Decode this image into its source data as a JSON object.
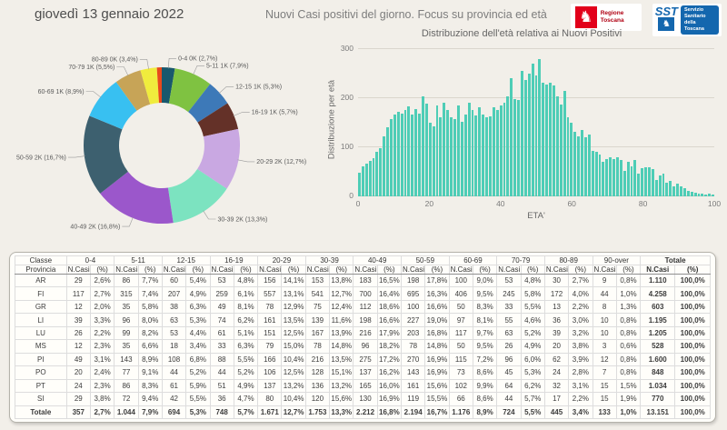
{
  "header": {
    "date": "giovedì 13 gennaio 2022",
    "title": "Nuovi Casi positivi del giorno. Focus su provincia ed età",
    "logos": {
      "region_name": "Regione Toscana",
      "sst_abbr": "SST",
      "sst_lines": [
        "Servizio",
        "Sanitario",
        "della",
        "Toscana"
      ]
    }
  },
  "colors": {
    "page_bg": "#f2efe9",
    "bar": "#4ecdb6",
    "region_red": "#e2001a",
    "sst_blue": "#1467ae"
  },
  "chart_data": [
    {
      "type": "pie",
      "subtype": "donut",
      "legend_position": "callout-labels",
      "slices": [
        {
          "label": "0-4",
          "pct": 2.7,
          "display": "0-4 0K (2,7%)",
          "color": "#19586d"
        },
        {
          "label": "5-11",
          "pct": 7.9,
          "display": "5-11 1K (7,9%)",
          "color": "#7fc241"
        },
        {
          "label": "12-15",
          "pct": 5.3,
          "display": "12-15 1K (5,3%)",
          "color": "#3d79b8"
        },
        {
          "label": "16-19",
          "pct": 5.7,
          "display": "16-19 1K (5,7%)",
          "color": "#643128"
        },
        {
          "label": "20-29",
          "pct": 12.7,
          "display": "20-29 2K (12,7%)",
          "color": "#c9a8e2"
        },
        {
          "label": "30-39",
          "pct": 13.3,
          "display": "30-39 2K (13,3%)",
          "color": "#7ce3c0"
        },
        {
          "label": "40-49",
          "pct": 16.8,
          "display": "40-49 2K (16,8%)",
          "color": "#9b57cb"
        },
        {
          "label": "50-59",
          "pct": 16.7,
          "display": "50-59 2K (16,7%)",
          "color": "#3d606f"
        },
        {
          "label": "60-69",
          "pct": 8.9,
          "display": "60-69 1K (8,9%)",
          "color": "#38c0f1"
        },
        {
          "label": "70-79",
          "pct": 5.5,
          "display": "70-79 1K (5,5%)",
          "color": "#c7a457"
        },
        {
          "label": "80-89",
          "pct": 3.4,
          "display": "80-89 0K (3,4%)",
          "color": "#f0ec3d"
        },
        {
          "label": "90-over",
          "pct": 1.0,
          "display": "",
          "color": "#e8491c"
        }
      ]
    },
    {
      "type": "bar",
      "title": "Distribuzione dell'età relativa ai Nuovi Positivi",
      "xlabel": "ETA'",
      "ylabel": "Distribuzione per età",
      "ylim": [
        0,
        300
      ],
      "yticks": [
        "0",
        "100",
        "200",
        "300"
      ],
      "xticks": [
        "0",
        "20",
        "40",
        "60",
        "80",
        "100"
      ],
      "x_range": [
        0,
        100
      ],
      "grid": true,
      "values": [
        48,
        62,
        66,
        72,
        78,
        90,
        98,
        122,
        141,
        158,
        166,
        172,
        168,
        176,
        184,
        166,
        178,
        168,
        204,
        188,
        150,
        142,
        186,
        162,
        190,
        176,
        162,
        158,
        186,
        152,
        166,
        190,
        176,
        164,
        182,
        166,
        161,
        163,
        181,
        176,
        186,
        190,
        204,
        240,
        198,
        196,
        256,
        238,
        250,
        270,
        246,
        279,
        232,
        228,
        232,
        226,
        204,
        187,
        214,
        162,
        150,
        132,
        122,
        136,
        120,
        126,
        92,
        90,
        86,
        71,
        76,
        80,
        76,
        80,
        75,
        52,
        70,
        62,
        74,
        46,
        57,
        60,
        60,
        55,
        33,
        42,
        46,
        27,
        31,
        21,
        26,
        21,
        16,
        11,
        10,
        8,
        6,
        5,
        3,
        5,
        4
      ]
    }
  ],
  "table": {
    "corner_top": "Classe",
    "corner_bottom": "Provincia",
    "class_headers": [
      "0-4",
      "5-11",
      "12-15",
      "16-19",
      "20-29",
      "30-39",
      "40-49",
      "50-59",
      "60-69",
      "70-79",
      "80-89",
      "90-over",
      "Totale"
    ],
    "subheaders": [
      "N.Casi",
      "(%)"
    ],
    "rows": [
      {
        "provincia": "AR",
        "total": false,
        "cells": [
          "29",
          "2,6%",
          "86",
          "7,7%",
          "60",
          "5,4%",
          "53",
          "4,8%",
          "156",
          "14,1%",
          "153",
          "13,8%",
          "183",
          "16,5%",
          "198",
          "17,8%",
          "100",
          "9,0%",
          "53",
          "4,8%",
          "30",
          "2,7%",
          "9",
          "0,8%",
          "1.110",
          "100,0%"
        ]
      },
      {
        "provincia": "FI",
        "total": false,
        "cells": [
          "117",
          "2,7%",
          "315",
          "7,4%",
          "207",
          "4,9%",
          "259",
          "6,1%",
          "557",
          "13,1%",
          "541",
          "12,7%",
          "700",
          "16,4%",
          "695",
          "16,3%",
          "406",
          "9,5%",
          "245",
          "5,8%",
          "172",
          "4,0%",
          "44",
          "1,0%",
          "4.258",
          "100,0%"
        ]
      },
      {
        "provincia": "GR",
        "total": false,
        "cells": [
          "12",
          "2,0%",
          "35",
          "5,8%",
          "38",
          "6,3%",
          "49",
          "8,1%",
          "78",
          "12,9%",
          "75",
          "12,4%",
          "112",
          "18,6%",
          "100",
          "16,6%",
          "50",
          "8,3%",
          "33",
          "5,5%",
          "13",
          "2,2%",
          "8",
          "1,3%",
          "603",
          "100,0%"
        ]
      },
      {
        "provincia": "LI",
        "total": false,
        "cells": [
          "39",
          "3,3%",
          "96",
          "8,0%",
          "63",
          "5,3%",
          "74",
          "6,2%",
          "161",
          "13,5%",
          "139",
          "11,6%",
          "198",
          "16,6%",
          "227",
          "19,0%",
          "97",
          "8,1%",
          "55",
          "4,6%",
          "36",
          "3,0%",
          "10",
          "0,8%",
          "1.195",
          "100,0%"
        ]
      },
      {
        "provincia": "LU",
        "total": false,
        "cells": [
          "26",
          "2,2%",
          "99",
          "8,2%",
          "53",
          "4,4%",
          "61",
          "5,1%",
          "151",
          "12,5%",
          "167",
          "13,9%",
          "216",
          "17,9%",
          "203",
          "16,8%",
          "117",
          "9,7%",
          "63",
          "5,2%",
          "39",
          "3,2%",
          "10",
          "0,8%",
          "1.205",
          "100,0%"
        ]
      },
      {
        "provincia": "MS",
        "total": false,
        "cells": [
          "12",
          "2,3%",
          "35",
          "6,6%",
          "18",
          "3,4%",
          "33",
          "6,3%",
          "79",
          "15,0%",
          "78",
          "14,8%",
          "96",
          "18,2%",
          "78",
          "14,8%",
          "50",
          "9,5%",
          "26",
          "4,9%",
          "20",
          "3,8%",
          "3",
          "0,6%",
          "528",
          "100,0%"
        ]
      },
      {
        "provincia": "PI",
        "total": false,
        "cells": [
          "49",
          "3,1%",
          "143",
          "8,9%",
          "108",
          "6,8%",
          "88",
          "5,5%",
          "166",
          "10,4%",
          "216",
          "13,5%",
          "275",
          "17,2%",
          "270",
          "16,9%",
          "115",
          "7,2%",
          "96",
          "6,0%",
          "62",
          "3,9%",
          "12",
          "0,8%",
          "1.600",
          "100,0%"
        ]
      },
      {
        "provincia": "PO",
        "total": false,
        "cells": [
          "20",
          "2,4%",
          "77",
          "9,1%",
          "44",
          "5,2%",
          "44",
          "5,2%",
          "106",
          "12,5%",
          "128",
          "15,1%",
          "137",
          "16,2%",
          "143",
          "16,9%",
          "73",
          "8,6%",
          "45",
          "5,3%",
          "24",
          "2,8%",
          "7",
          "0,8%",
          "848",
          "100,0%"
        ]
      },
      {
        "provincia": "PT",
        "total": false,
        "cells": [
          "24",
          "2,3%",
          "86",
          "8,3%",
          "61",
          "5,9%",
          "51",
          "4,9%",
          "137",
          "13,2%",
          "136",
          "13,2%",
          "165",
          "16,0%",
          "161",
          "15,6%",
          "102",
          "9,9%",
          "64",
          "6,2%",
          "32",
          "3,1%",
          "15",
          "1,5%",
          "1.034",
          "100,0%"
        ]
      },
      {
        "provincia": "SI",
        "total": false,
        "cells": [
          "29",
          "3,8%",
          "72",
          "9,4%",
          "42",
          "5,5%",
          "36",
          "4,7%",
          "80",
          "10,4%",
          "120",
          "15,6%",
          "130",
          "16,9%",
          "119",
          "15,5%",
          "66",
          "8,6%",
          "44",
          "5,7%",
          "17",
          "2,2%",
          "15",
          "1,9%",
          "770",
          "100,0%"
        ]
      },
      {
        "provincia": "Totale",
        "total": true,
        "cells": [
          "357",
          "2,7%",
          "1.044",
          "7,9%",
          "694",
          "5,3%",
          "748",
          "5,7%",
          "1.671",
          "12,7%",
          "1.753",
          "13,3%",
          "2.212",
          "16,8%",
          "2.194",
          "16,7%",
          "1.176",
          "8,9%",
          "724",
          "5,5%",
          "445",
          "3,4%",
          "133",
          "1,0%",
          "13.151",
          "100,0%"
        ]
      }
    ]
  }
}
